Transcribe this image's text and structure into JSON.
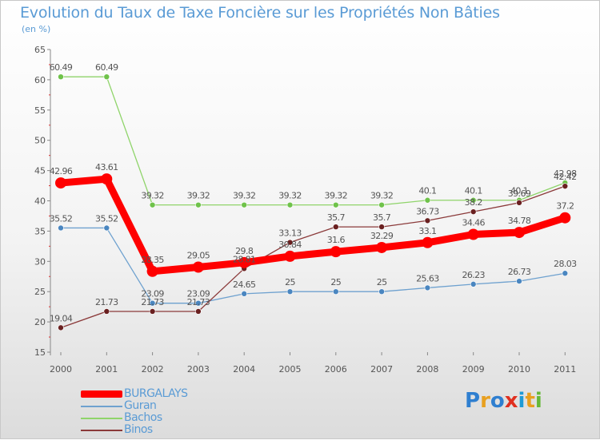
{
  "chart_data": {
    "type": "line",
    "title": "Evolution du Taux de Taxe Foncière sur les Propriétés Non Bâties",
    "ylabel": "(en %)",
    "xlabel": "",
    "ylim": [
      15,
      65
    ],
    "yticks": [
      "15",
      "20",
      "25",
      "30",
      "35",
      "40",
      "45",
      "50",
      "55",
      "60",
      "65"
    ],
    "categories": [
      "2000",
      "2001",
      "2002",
      "2003",
      "2004",
      "2005",
      "2006",
      "2007",
      "2008",
      "2009",
      "2010",
      "2011"
    ],
    "series": [
      {
        "name": "BURGALAYS",
        "color": "#ff0000",
        "values": [
          42.96,
          43.61,
          28.35,
          29.05,
          29.8,
          30.84,
          31.6,
          32.29,
          33.1,
          34.46,
          34.78,
          37.2
        ],
        "labels": [
          "42.96",
          "43.61",
          "28.35",
          "29.05",
          "29.8",
          "30.84",
          "31.6",
          "32.29",
          "33.1",
          "34.46",
          "34.78",
          "37.2"
        ]
      },
      {
        "name": "Guran",
        "color": "#6ea1cf",
        "values": [
          35.52,
          35.52,
          23.09,
          23.09,
          24.65,
          25,
          25,
          25,
          25.63,
          26.23,
          26.73,
          28.03
        ],
        "labels": [
          "35.52",
          "35.52",
          "23.09",
          "23.09",
          "24.65",
          "25",
          "25",
          "25",
          "25.63",
          "26.23",
          "26.73",
          "28.03"
        ]
      },
      {
        "name": "Bachos",
        "color": "#8fd46a",
        "values": [
          60.49,
          60.49,
          39.32,
          39.32,
          39.32,
          39.32,
          39.32,
          39.32,
          40.1,
          40.1,
          40.1,
          42.98
        ],
        "labels": [
          "60.49",
          "60.49",
          "39.32",
          "39.32",
          "39.32",
          "39.32",
          "39.32",
          "39.32",
          "40.1",
          "40.1",
          "40.1",
          "42.98"
        ]
      },
      {
        "name": "Binos",
        "color": "#8b3a3a",
        "values": [
          19.04,
          21.73,
          21.73,
          21.73,
          28.81,
          33.13,
          35.7,
          35.7,
          36.73,
          38.2,
          39.69,
          42.42
        ],
        "labels": [
          "19.04",
          "21.73",
          "21.73",
          "21.73",
          "28.81",
          "33.13",
          "35.7",
          "35.7",
          "36.73",
          "38.2",
          "39.69",
          "42.42"
        ]
      }
    ],
    "grid": false,
    "legend_position": "bottom-left"
  },
  "logo": {
    "text": "Proxiti"
  }
}
